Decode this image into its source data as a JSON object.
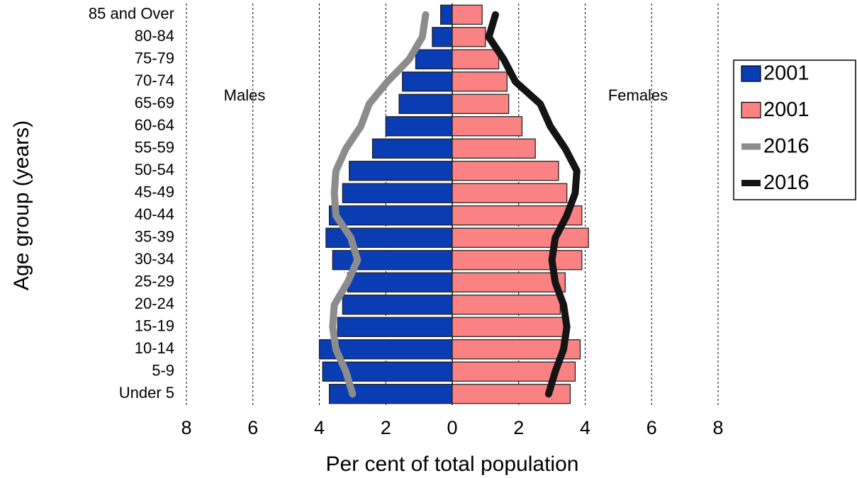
{
  "chart_data": {
    "type": "bar",
    "orientation": "horizontal",
    "y_label": "Age group (years)",
    "x_label": "Per cent of total population",
    "annotations": [
      "Males",
      "Females"
    ],
    "categories": [
      "Under 5",
      "5-9",
      "10-14",
      "15-19",
      "20-24",
      "25-29",
      "30-34",
      "35-39",
      "40-44",
      "45-49",
      "50-54",
      "55-59",
      "60-64",
      "65-69",
      "70-74",
      "75-79",
      "80-84",
      "85 and Over"
    ],
    "series": [
      {
        "name": "2001",
        "type": "bar",
        "color": "#0a3cb4",
        "values": [
          -3.7,
          -3.9,
          -4.0,
          -3.45,
          -3.3,
          -3.15,
          -3.6,
          -3.8,
          -3.7,
          -3.3,
          -3.1,
          -2.4,
          -2.0,
          -1.6,
          -1.5,
          -1.1,
          -0.6,
          -0.35
        ]
      },
      {
        "name": "2001",
        "type": "bar",
        "color": "#fa8282",
        "values": [
          3.55,
          3.7,
          3.85,
          3.5,
          3.25,
          3.4,
          3.9,
          4.1,
          3.9,
          3.45,
          3.2,
          2.5,
          2.1,
          1.7,
          1.65,
          1.4,
          1.0,
          0.9
        ]
      },
      {
        "name": "2016",
        "type": "line",
        "color": "#8c8c8c",
        "values": [
          -3.0,
          -3.2,
          -3.5,
          -3.6,
          -3.55,
          -3.15,
          -2.85,
          -3.05,
          -3.5,
          -3.55,
          -3.5,
          -3.2,
          -2.75,
          -2.5,
          -1.95,
          -1.3,
          -0.9,
          -0.8
        ]
      },
      {
        "name": "2016",
        "type": "line",
        "color": "#141414",
        "values": [
          2.9,
          3.1,
          3.35,
          3.45,
          3.35,
          3.1,
          3.0,
          3.1,
          3.45,
          3.7,
          3.75,
          3.4,
          2.95,
          2.65,
          1.9,
          1.55,
          1.1,
          1.3
        ]
      }
    ],
    "xlim": [
      -8,
      8
    ],
    "xticks": [
      {
        "value": -8,
        "label": "8"
      },
      {
        "value": -6,
        "label": "6"
      },
      {
        "value": -4,
        "label": "4"
      },
      {
        "value": -2,
        "label": "2"
      },
      0,
      2,
      4,
      6,
      8
    ],
    "grid": true,
    "legend": "right"
  }
}
